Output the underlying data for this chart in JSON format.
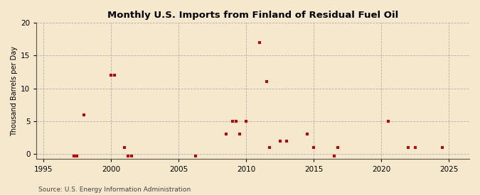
{
  "title": "Monthly U.S. Imports from Finland of Residual Fuel Oil",
  "ylabel": "Thousand Barrels per Day",
  "source": "Source: U.S. Energy Information Administration",
  "xlim": [
    1994.5,
    2026.5
  ],
  "ylim": [
    -0.8,
    20
  ],
  "yticks": [
    0,
    5,
    10,
    15,
    20
  ],
  "xticks": [
    1995,
    2000,
    2005,
    2010,
    2015,
    2020,
    2025
  ],
  "background_color": "#f5e8cc",
  "plot_background": "#f5e8cc",
  "grid_color": "#aaaaaa",
  "point_color": "#cc0000",
  "data_points": [
    [
      1997.25,
      -0.3
    ],
    [
      1997.5,
      -0.3
    ],
    [
      1998.0,
      6
    ],
    [
      2000.0,
      12
    ],
    [
      2000.25,
      12
    ],
    [
      2001.0,
      1
    ],
    [
      2001.25,
      -0.3
    ],
    [
      2001.5,
      -0.3
    ],
    [
      2006.25,
      -0.3
    ],
    [
      2008.5,
      3
    ],
    [
      2009.0,
      5
    ],
    [
      2009.25,
      5
    ],
    [
      2009.5,
      3
    ],
    [
      2010.0,
      5
    ],
    [
      2011.0,
      17
    ],
    [
      2011.5,
      11
    ],
    [
      2011.75,
      1
    ],
    [
      2012.5,
      2
    ],
    [
      2013.0,
      2
    ],
    [
      2014.5,
      3
    ],
    [
      2015.0,
      1
    ],
    [
      2016.5,
      -0.3
    ],
    [
      2016.75,
      1
    ],
    [
      2020.5,
      5
    ],
    [
      2022.0,
      1
    ],
    [
      2022.5,
      1
    ],
    [
      2024.5,
      1
    ]
  ]
}
